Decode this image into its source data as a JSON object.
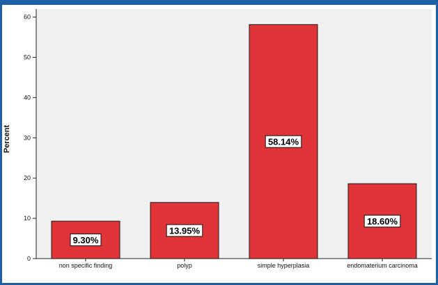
{
  "chart_data": {
    "type": "bar",
    "categories": [
      "non specific finding",
      "polyp",
      "simple hyperplasia",
      "endomaterium carcinoma"
    ],
    "values": [
      9.3,
      13.95,
      58.14,
      18.6
    ],
    "data_labels": [
      "9.30%",
      "13.95%",
      "58.14%",
      "18.60%"
    ],
    "title": "",
    "xlabel": "",
    "ylabel": "Percent",
    "ylim": [
      0,
      62
    ],
    "yticks": [
      0,
      10,
      20,
      30,
      40,
      50,
      60
    ],
    "grid": false,
    "colors": {
      "bar": "#e03438",
      "bar_edge": "#1a1a1a",
      "plot_background": "#f0f0f0",
      "frame": "#1f5fa8"
    }
  }
}
